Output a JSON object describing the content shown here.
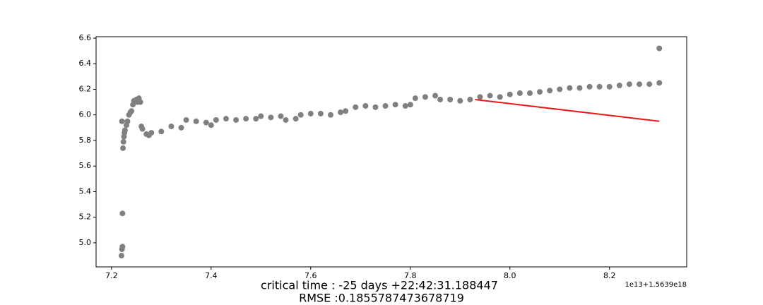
{
  "chart_data": {
    "type": "scatter",
    "xlabel": [
      "critical time : -25 days +22:42:31.188447",
      "RMSE :0.1855787473678719"
    ],
    "x_offset_label": "1e13+1.5639e18",
    "xlim": [
      7.169,
      8.355
    ],
    "ylim": [
      4.812,
      6.611
    ],
    "xticks": [
      7.2,
      7.4,
      7.6,
      7.8,
      {
        "value": 8,
        "label": "8.0"
      },
      8.2
    ],
    "yticks": [
      {
        "value": 5,
        "label": "5.0"
      },
      5.2,
      5.4,
      5.6,
      5.8,
      {
        "value": 6,
        "label": "6.0"
      },
      6.2,
      6.4,
      6.6
    ],
    "series": [
      {
        "type": "scatter",
        "color": "#808080",
        "x": [
          7.22,
          7.221,
          7.222,
          7.222,
          7.223,
          7.224,
          7.221,
          7.225,
          7.226,
          7.227,
          7.23,
          7.232,
          7.235,
          7.238,
          7.24,
          7.243,
          7.245,
          7.25,
          7.252,
          7.255,
          7.258,
          7.26,
          7.262,
          7.27,
          7.275,
          7.28,
          7.3,
          7.32,
          7.34,
          7.35,
          7.37,
          7.39,
          7.4,
          7.41,
          7.43,
          7.45,
          7.47,
          7.49,
          7.5,
          7.52,
          7.54,
          7.55,
          7.57,
          7.58,
          7.6,
          7.62,
          7.64,
          7.66,
          7.67,
          7.69,
          7.71,
          7.73,
          7.75,
          7.77,
          7.79,
          7.8,
          7.81,
          7.83,
          7.85,
          7.86,
          7.88,
          7.9,
          7.92,
          7.94,
          7.96,
          7.98,
          8.0,
          8.02,
          8.04,
          8.06,
          8.08,
          8.1,
          8.12,
          8.14,
          8.16,
          8.18,
          8.2,
          8.22,
          8.24,
          8.26,
          8.28,
          8.3,
          8.3
        ],
        "y": [
          4.9,
          4.95,
          4.97,
          5.23,
          5.74,
          5.79,
          5.95,
          5.83,
          5.86,
          5.88,
          5.92,
          5.95,
          6.0,
          6.02,
          6.03,
          6.08,
          6.11,
          6.12,
          6.1,
          6.13,
          6.1,
          5.91,
          5.89,
          5.85,
          5.84,
          5.86,
          5.87,
          5.91,
          5.9,
          5.96,
          5.95,
          5.94,
          5.92,
          5.96,
          5.97,
          5.96,
          5.97,
          5.97,
          5.99,
          5.98,
          5.99,
          5.96,
          5.97,
          6.0,
          6.01,
          6.01,
          6.0,
          6.02,
          6.03,
          6.06,
          6.07,
          6.06,
          6.07,
          6.08,
          6.07,
          6.08,
          6.13,
          6.14,
          6.15,
          6.12,
          6.12,
          6.11,
          6.12,
          6.14,
          6.15,
          6.14,
          6.16,
          6.17,
          6.17,
          6.18,
          6.19,
          6.2,
          6.21,
          6.21,
          6.22,
          6.22,
          6.22,
          6.23,
          6.24,
          6.24,
          6.24,
          6.25,
          6.52
        ]
      },
      {
        "type": "line",
        "color": "#e8191b",
        "x": [
          7.93,
          8.3
        ],
        "y": [
          6.12,
          5.95
        ]
      }
    ]
  }
}
